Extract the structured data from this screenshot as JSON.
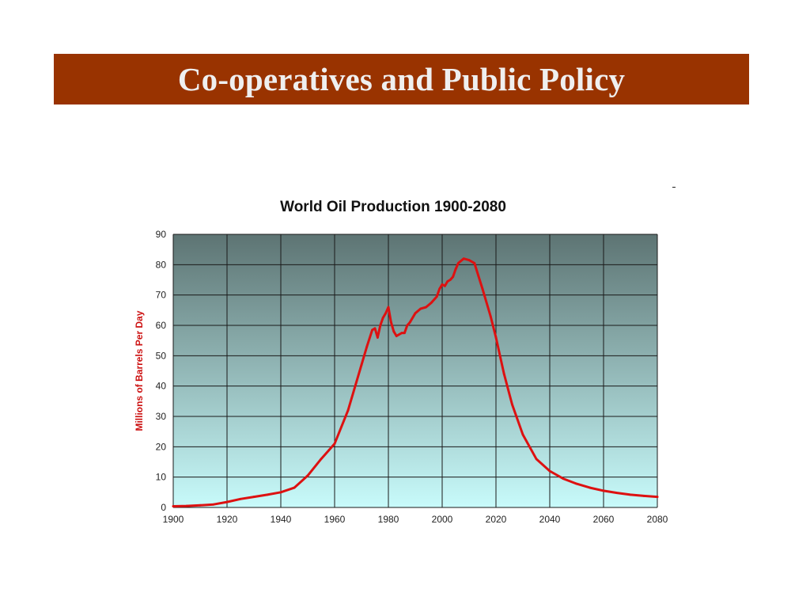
{
  "slide": {
    "title": "Co-operatives and Public Policy"
  },
  "colors": {
    "title_bar": "#993300",
    "title_text": "#efefef",
    "plot_top": "#5d7473",
    "plot_bottom": "#c8fbfb",
    "series_line": "#dd1111",
    "ylabel_color": "#cc1111"
  },
  "chart_data": {
    "type": "line",
    "title": "World Oil Production 1900-2080",
    "xlabel": "",
    "ylabel": "Millions of Barrels Per Day",
    "xlim": [
      1900,
      2080
    ],
    "ylim": [
      0,
      90
    ],
    "x_ticks": [
      1900,
      1920,
      1940,
      1960,
      1980,
      2000,
      2020,
      2040,
      2060,
      2080
    ],
    "y_ticks": [
      0,
      10,
      20,
      30,
      40,
      50,
      60,
      70,
      80,
      90
    ],
    "x_tick_labels": [
      "1900",
      "1920",
      "1940",
      "1960",
      "1980",
      "2000",
      "2020",
      "2040",
      "2060",
      "2080"
    ],
    "y_tick_labels": [
      "0",
      "10",
      "20",
      "30",
      "40",
      "50",
      "60",
      "70",
      "80",
      "90"
    ],
    "grid": true,
    "series": [
      {
        "values_x": [
          1900,
          1905,
          1910,
          1915,
          1920,
          1925,
          1930,
          1935,
          1940,
          1945,
          1950,
          1955,
          1958,
          1960,
          1965,
          1970,
          1972,
          1974,
          1975,
          1976,
          1977,
          1978,
          1979,
          1980,
          1981,
          1982,
          1983,
          1984,
          1985,
          1986,
          1987,
          1988,
          1990,
          1992,
          1994,
          1996,
          1998,
          1999,
          2000,
          2001,
          2002,
          2003,
          2004,
          2005,
          2006,
          2008,
          2010,
          2012,
          2015,
          2018,
          2020,
          2023,
          2026,
          2030,
          2035,
          2040,
          2045,
          2050,
          2055,
          2060,
          2065,
          2070,
          2075,
          2080
        ],
        "values_y": [
          0.4,
          0.5,
          0.7,
          1.0,
          1.8,
          2.8,
          3.5,
          4.2,
          5.0,
          6.5,
          10.5,
          16,
          19,
          21,
          32,
          47,
          53,
          58.5,
          59,
          56,
          60,
          62.5,
          64,
          66,
          61,
          58,
          56.5,
          57,
          57.5,
          57.5,
          60,
          61,
          64,
          65.5,
          66,
          67.5,
          69.5,
          72,
          73.5,
          73,
          74.5,
          75,
          76,
          78.5,
          80.5,
          82,
          81.5,
          80.5,
          72,
          63,
          56,
          44,
          34,
          24,
          16,
          12,
          9.5,
          7.8,
          6.5,
          5.5,
          4.8,
          4.2,
          3.8,
          3.5
        ]
      }
    ]
  }
}
